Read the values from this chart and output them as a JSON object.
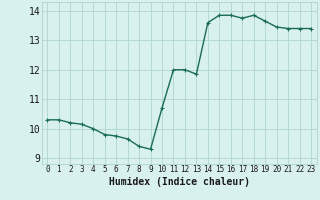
{
  "title": "",
  "xlabel": "Humidex (Indice chaleur)",
  "ylabel": "",
  "x": [
    0,
    1,
    2,
    3,
    4,
    5,
    6,
    7,
    8,
    9,
    10,
    11,
    12,
    13,
    14,
    15,
    16,
    17,
    18,
    19,
    20,
    21,
    22,
    23
  ],
  "y": [
    10.3,
    10.3,
    10.2,
    10.15,
    10.0,
    9.8,
    9.75,
    9.65,
    9.4,
    9.3,
    10.7,
    12.0,
    12.0,
    11.85,
    13.6,
    13.85,
    13.85,
    13.75,
    13.85,
    13.65,
    13.45,
    13.4,
    13.4,
    13.4
  ],
  "line_color": "#1a6b5a",
  "marker": "+",
  "marker_size": 3,
  "bg_color": "#d8f0ee",
  "grid_color": "#aed4ce",
  "tick_label_color": "#1a1a1a",
  "xlim": [
    -0.5,
    23.5
  ],
  "ylim": [
    8.8,
    14.3
  ],
  "yticks": [
    9,
    10,
    11,
    12,
    13,
    14
  ],
  "xticks": [
    0,
    1,
    2,
    3,
    4,
    5,
    6,
    7,
    8,
    9,
    10,
    11,
    12,
    13,
    14,
    15,
    16,
    17,
    18,
    19,
    20,
    21,
    22,
    23
  ],
  "xlabel_fontsize": 7,
  "tick_fontsize": 7,
  "xtick_fontsize": 5.5,
  "linewidth": 1.0
}
